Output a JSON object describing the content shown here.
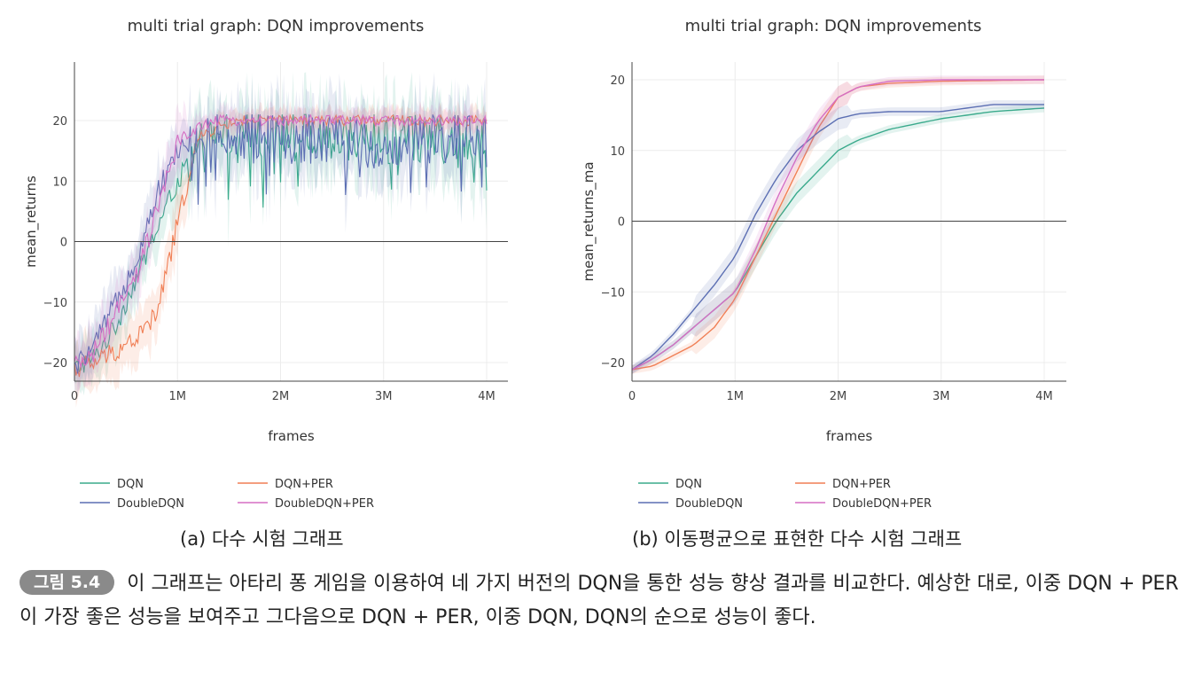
{
  "chart_data": [
    {
      "type": "line",
      "title": "multi trial graph: DQN improvements",
      "xlabel": "frames",
      "ylabel": "mean_returns",
      "xlim": [
        0,
        4200000
      ],
      "ylim": [
        -22,
        29
      ],
      "xticks": [
        0,
        1000000,
        2000000,
        3000000,
        4000000
      ],
      "xtick_labels": [
        "0",
        "1M",
        "2M",
        "3M",
        "4M"
      ],
      "yticks": [
        -20,
        -10,
        0,
        10,
        20
      ],
      "ytick_labels": [
        "−20",
        "−10",
        "0",
        "10",
        "20"
      ],
      "x": [
        0,
        200000,
        400000,
        600000,
        800000,
        1000000,
        1200000,
        1400000,
        1600000,
        2000000,
        2500000,
        3000000,
        3500000,
        4000000
      ],
      "series": [
        {
          "name": "DQN",
          "color": "#3aaa8c",
          "values": [
            -21,
            -19,
            -14,
            -6,
            2,
            10,
            15,
            17,
            18,
            18,
            17,
            17,
            17,
            18
          ]
        },
        {
          "name": "DQN+PER",
          "color": "#f07f55",
          "values": [
            -21,
            -20,
            -18,
            -16,
            -12,
            3,
            17,
            19,
            20,
            20,
            20,
            20,
            20,
            20
          ]
        },
        {
          "name": "DoubleDQN",
          "color": "#5c6fb3",
          "values": [
            -21,
            -17,
            -10,
            -3,
            8,
            15,
            18,
            18,
            18,
            17,
            17,
            16,
            17,
            17
          ]
        },
        {
          "name": "DoubleDQN+PER",
          "color": "#d56fc4",
          "values": [
            -21,
            -18,
            -12,
            -6,
            5,
            16,
            19,
            20,
            20,
            20,
            20,
            20,
            20,
            20
          ]
        }
      ]
    },
    {
      "type": "line",
      "title": "multi trial graph: DQN improvements",
      "xlabel": "frames",
      "ylabel": "mean_returns_ma",
      "xlim": [
        0,
        4200000
      ],
      "ylim": [
        -23,
        22.5
      ],
      "xticks": [
        0,
        1000000,
        2000000,
        3000000,
        4000000
      ],
      "xtick_labels": [
        "0",
        "1M",
        "2M",
        "3M",
        "4M"
      ],
      "yticks": [
        -20,
        -10,
        0,
        10,
        20
      ],
      "ytick_labels": [
        "−20",
        "−10",
        "0",
        "10",
        "20"
      ],
      "x": [
        0,
        200000,
        400000,
        600000,
        800000,
        1000000,
        1200000,
        1400000,
        1600000,
        1800000,
        2000000,
        2200000,
        2500000,
        3000000,
        3500000,
        4000000
      ],
      "series": [
        {
          "name": "DQN",
          "color": "#3aaa8c",
          "values": [
            -21,
            -19.5,
            -17.5,
            -15,
            -12.5,
            -10,
            -5,
            0,
            4,
            7,
            10,
            11.5,
            13,
            14.5,
            15.5,
            16
          ]
        },
        {
          "name": "DQN+PER",
          "color": "#f07f55",
          "values": [
            -21,
            -20.5,
            -19,
            -17.5,
            -15,
            -11,
            -5,
            1,
            7,
            13,
            17.5,
            19,
            19.5,
            19.8,
            19.9,
            20
          ]
        },
        {
          "name": "DoubleDQN",
          "color": "#5c6fb3",
          "values": [
            -21,
            -19,
            -16,
            -12.5,
            -9,
            -5,
            1,
            6,
            10,
            12.5,
            14.5,
            15.2,
            15.5,
            15.5,
            16.5,
            16.5
          ]
        },
        {
          "name": "DoubleDQN+PER",
          "color": "#d56fc4",
          "values": [
            -21,
            -19.5,
            -17.5,
            -15,
            -12.5,
            -10,
            -4,
            3,
            9,
            14,
            17.5,
            19,
            19.8,
            20,
            20,
            20
          ]
        }
      ]
    }
  ],
  "captions": {
    "a": "(a) 다수 시험 그래프",
    "b": "(b) 이동평균으로 표현한 다수 시험 그래프",
    "figure_label": "그림 5.4",
    "figure_text": "이 그래프는 아타리 퐁 게임을 이용하여 네 가지 버전의 DQN을 통한 성능 향상 결과를 비교한다. 예상한 대로, 이중 DQN + PER이 가장 좋은 성능을 보여주고 그다음으로 DQN + PER, 이중 DQN, DQN의 순으로 성능이 좋다."
  }
}
